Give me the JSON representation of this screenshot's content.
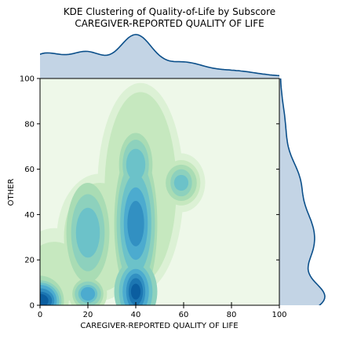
{
  "chart_data": {
    "type": "kde-joint",
    "title_line1": "KDE Clustering of Quality-of-Life by Subscore",
    "title_line2": "CAREGIVER-REPORTED QUALITY OF LIFE",
    "xlabel": "CAREGIVER-REPORTED QUALITY OF LIFE",
    "ylabel": "OTHER",
    "xlim": [
      0,
      100
    ],
    "ylim": [
      0,
      100
    ],
    "xticks": [
      "0",
      "20",
      "40",
      "60",
      "80",
      "100"
    ],
    "yticks": [
      "0",
      "20",
      "40",
      "60",
      "80",
      "100"
    ],
    "colormap": "GnBu",
    "density_levels": 10,
    "marginal_color": "#0b4f8a",
    "marginal_fill": "#c3d4e5",
    "clusters": [
      {
        "x": 0,
        "y": 2,
        "weight": 1.0
      },
      {
        "x": 20,
        "y": 5,
        "weight": 0.55
      },
      {
        "x": 20,
        "y": 32,
        "weight": 0.55
      },
      {
        "x": 40,
        "y": 5,
        "weight": 0.85
      },
      {
        "x": 40,
        "y": 35,
        "weight": 0.7
      },
      {
        "x": 40,
        "y": 60,
        "weight": 0.45
      },
      {
        "x": 60,
        "y": 53,
        "weight": 0.45
      }
    ]
  }
}
